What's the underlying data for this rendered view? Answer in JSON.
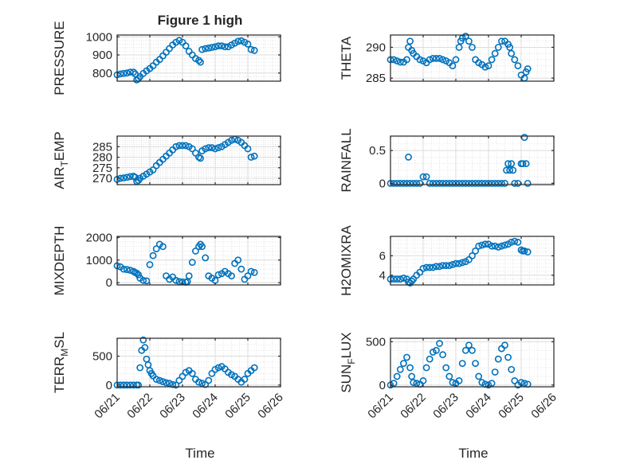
{
  "figure": {
    "title": "Figure 1 high"
  },
  "xticks": [
    "06/21",
    "06/22",
    "06/23",
    "06/24",
    "06/25",
    "06/26"
  ],
  "xlabel_left": "Time",
  "xlabel_right": "Time",
  "colors": {
    "marker": "#0072BD",
    "axis": "#262626",
    "grid": "#dcdcdc",
    "background": "#ffffff"
  },
  "chart_data": [
    {
      "type": "scatter",
      "ylabel": "PRESSURE",
      "ylim": [
        755,
        1010
      ],
      "yticks": [
        "800",
        "900",
        "1000"
      ],
      "ytick_values": [
        800,
        900,
        1000
      ],
      "xlim": [
        0,
        5
      ],
      "x": [
        0,
        0.1,
        0.2,
        0.3,
        0.4,
        0.5,
        0.55,
        0.6,
        0.65,
        0.7,
        0.8,
        0.9,
        1.0,
        1.1,
        1.2,
        1.3,
        1.4,
        1.5,
        1.6,
        1.7,
        1.8,
        1.9,
        2.0,
        2.1,
        2.2,
        2.3,
        2.4,
        2.5,
        2.55,
        2.6,
        2.7,
        2.8,
        2.9,
        3.0,
        3.1,
        3.2,
        3.3,
        3.4,
        3.5,
        3.6,
        3.7,
        3.8,
        3.9,
        4.0,
        4.1,
        4.2
      ],
      "y": [
        790,
        795,
        798,
        800,
        805,
        805,
        795,
        762,
        770,
        780,
        798,
        812,
        825,
        840,
        860,
        875,
        895,
        915,
        935,
        955,
        970,
        980,
        970,
        950,
        920,
        900,
        880,
        870,
        860,
        930,
        935,
        938,
        942,
        945,
        950,
        950,
        945,
        945,
        955,
        965,
        975,
        978,
        970,
        960,
        930,
        925
      ]
    },
    {
      "type": "scatter",
      "ylabel": "THETA",
      "ylim": [
        284.5,
        292
      ],
      "yticks": [
        "285",
        "290"
      ],
      "ytick_values": [
        285,
        290
      ],
      "xlim": [
        0,
        5
      ],
      "x": [
        0,
        0.1,
        0.2,
        0.3,
        0.4,
        0.5,
        0.55,
        0.6,
        0.65,
        0.7,
        0.8,
        0.9,
        1.0,
        1.1,
        1.2,
        1.3,
        1.4,
        1.5,
        1.6,
        1.7,
        1.8,
        1.9,
        2.0,
        2.1,
        2.15,
        2.2,
        2.3,
        2.4,
        2.5,
        2.6,
        2.7,
        2.8,
        2.9,
        3.0,
        3.1,
        3.2,
        3.3,
        3.4,
        3.5,
        3.6,
        3.65,
        3.7,
        3.8,
        3.9,
        4.0,
        4.1,
        4.15,
        4.2
      ],
      "y": [
        288,
        288,
        287.8,
        287.6,
        287.6,
        288,
        290,
        291,
        289.5,
        289,
        288.5,
        288,
        287.8,
        287.5,
        288,
        288.2,
        288.2,
        288.2,
        288,
        287.8,
        287.5,
        287,
        288,
        290,
        291,
        291.5,
        291.8,
        291,
        290,
        288,
        287.5,
        287.2,
        286.8,
        287,
        288,
        289,
        290,
        291,
        291,
        290.5,
        290,
        289,
        288,
        287,
        285.5,
        285,
        286,
        286.5
      ]
    },
    {
      "type": "scatter",
      "ylabel": "AIR_TEMP",
      "ylabel_main": "AIR",
      "ylabel_sub": "T",
      "ylabel_tail": "EMP",
      "ylim": [
        267,
        290
      ],
      "yticks": [
        "270",
        "275",
        "280",
        "285"
      ],
      "ytick_values": [
        270,
        275,
        280,
        285
      ],
      "xlim": [
        0,
        5
      ],
      "x": [
        0,
        0.1,
        0.2,
        0.3,
        0.4,
        0.5,
        0.55,
        0.6,
        0.65,
        0.7,
        0.8,
        0.9,
        1.0,
        1.1,
        1.2,
        1.3,
        1.4,
        1.5,
        1.6,
        1.7,
        1.8,
        1.9,
        2.0,
        2.1,
        2.2,
        2.3,
        2.4,
        2.5,
        2.55,
        2.6,
        2.7,
        2.8,
        2.9,
        3.0,
        3.1,
        3.2,
        3.3,
        3.4,
        3.5,
        3.6,
        3.7,
        3.8,
        3.9,
        4.0,
        4.1,
        4.2
      ],
      "y": [
        269.5,
        270,
        270.2,
        270.5,
        270.8,
        271,
        270.5,
        268.5,
        269,
        270,
        271,
        272,
        273,
        274,
        276,
        277.5,
        279,
        280.5,
        282,
        283.5,
        285,
        285.5,
        285.5,
        285.5,
        285,
        284,
        282,
        280,
        279.5,
        283,
        284,
        284.5,
        284.5,
        284,
        284.5,
        285,
        286,
        287,
        288,
        288.5,
        288,
        287,
        285.5,
        284,
        280,
        280.5
      ]
    },
    {
      "type": "scatter",
      "ylabel": "RAINFALL",
      "ylim": [
        -0.02,
        0.72
      ],
      "yticks": [
        "0",
        "0.5"
      ],
      "ytick_values": [
        0,
        0.5
      ],
      "xlim": [
        0,
        5
      ],
      "x": [
        0,
        0.1,
        0.2,
        0.3,
        0.4,
        0.5,
        0.55,
        0.6,
        0.7,
        0.8,
        0.9,
        1.0,
        1.1,
        1.2,
        1.3,
        1.4,
        1.5,
        1.6,
        1.7,
        1.8,
        1.9,
        2.0,
        2.1,
        2.2,
        2.3,
        2.4,
        2.5,
        2.6,
        2.7,
        2.8,
        2.9,
        3.0,
        3.1,
        3.2,
        3.3,
        3.4,
        3.5,
        3.55,
        3.6,
        3.65,
        3.7,
        3.75,
        3.8,
        3.9,
        4.0,
        4.05,
        4.1,
        4.15,
        4.2
      ],
      "y": [
        0,
        0,
        0,
        0,
        0,
        0,
        0.4,
        0,
        0,
        0,
        0,
        0.1,
        0.1,
        0,
        0,
        0,
        0,
        0,
        0,
        0,
        0,
        0,
        0,
        0,
        0,
        0,
        0,
        0,
        0,
        0,
        0,
        0,
        0,
        0,
        0,
        0,
        0,
        0.2,
        0.3,
        0.2,
        0.3,
        0.2,
        0,
        0,
        0.3,
        0.3,
        0.7,
        0.3,
        0
      ]
    },
    {
      "type": "scatter",
      "ylabel": "MIXDEPTH",
      "ylim": [
        -100,
        2050
      ],
      "yticks": [
        "0",
        "1000",
        "2000"
      ],
      "ytick_values": [
        0,
        1000,
        2000
      ],
      "xlim": [
        0,
        5
      ],
      "x": [
        0,
        0.1,
        0.2,
        0.3,
        0.4,
        0.5,
        0.55,
        0.6,
        0.65,
        0.7,
        0.8,
        0.9,
        1.0,
        1.1,
        1.2,
        1.3,
        1.4,
        1.5,
        1.6,
        1.7,
        1.8,
        1.9,
        2.0,
        2.1,
        2.15,
        2.2,
        2.3,
        2.4,
        2.5,
        2.55,
        2.6,
        2.7,
        2.8,
        2.9,
        3.0,
        3.1,
        3.2,
        3.3,
        3.4,
        3.5,
        3.6,
        3.7,
        3.8,
        3.9,
        4.0,
        4.1,
        4.2
      ],
      "y": [
        750,
        700,
        600,
        580,
        550,
        500,
        450,
        420,
        350,
        200,
        100,
        80,
        800,
        1200,
        1500,
        1700,
        1600,
        300,
        150,
        250,
        100,
        50,
        30,
        20,
        50,
        300,
        900,
        1400,
        1600,
        1700,
        1600,
        1100,
        300,
        200,
        100,
        350,
        400,
        500,
        400,
        300,
        850,
        1000,
        600,
        150,
        300,
        500,
        450
      ]
    },
    {
      "type": "scatter",
      "ylabel": "H2OMIXRA",
      "ylim": [
        3,
        8
      ],
      "yticks": [
        "4",
        "6"
      ],
      "ytick_values": [
        4,
        6
      ],
      "xlim": [
        0,
        5
      ],
      "x": [
        0,
        0.1,
        0.2,
        0.3,
        0.4,
        0.5,
        0.55,
        0.6,
        0.65,
        0.7,
        0.8,
        0.9,
        1.0,
        1.1,
        1.2,
        1.3,
        1.4,
        1.5,
        1.6,
        1.7,
        1.8,
        1.9,
        2.0,
        2.1,
        2.2,
        2.3,
        2.4,
        2.5,
        2.6,
        2.7,
        2.8,
        2.9,
        3.0,
        3.1,
        3.2,
        3.3,
        3.4,
        3.5,
        3.6,
        3.7,
        3.8,
        3.9,
        4.0,
        4.05,
        4.1,
        4.2
      ],
      "y": [
        3.6,
        3.6,
        3.6,
        3.6,
        3.7,
        3.6,
        3.3,
        3.2,
        3.4,
        3.6,
        4.0,
        4.3,
        4.7,
        4.8,
        4.8,
        4.8,
        4.9,
        4.9,
        5.0,
        5.0,
        5.0,
        5.1,
        5.2,
        5.2,
        5.3,
        5.4,
        5.6,
        6.0,
        6.5,
        7.0,
        7.1,
        7.2,
        7.2,
        7.0,
        7.0,
        6.9,
        7.0,
        7.1,
        7.2,
        7.4,
        7.5,
        7.4,
        6.6,
        6.5,
        6.5,
        6.4
      ]
    },
    {
      "type": "scatter",
      "ylabel": "TERR_MSL",
      "ylabel_main": "TERR",
      "ylabel_sub": "M",
      "ylabel_tail": "SL",
      "ylim": [
        -30,
        810
      ],
      "yticks": [
        "0",
        "500"
      ],
      "ytick_values": [
        0,
        500
      ],
      "xlim": [
        0,
        5
      ],
      "x": [
        0,
        0.1,
        0.2,
        0.3,
        0.4,
        0.5,
        0.6,
        0.65,
        0.7,
        0.75,
        0.8,
        0.85,
        0.9,
        0.95,
        1.0,
        1.05,
        1.1,
        1.2,
        1.3,
        1.4,
        1.5,
        1.6,
        1.7,
        1.8,
        1.9,
        2.0,
        2.1,
        2.2,
        2.3,
        2.4,
        2.5,
        2.6,
        2.7,
        2.8,
        2.9,
        3.0,
        3.1,
        3.2,
        3.3,
        3.4,
        3.5,
        3.6,
        3.7,
        3.8,
        3.9,
        4.0,
        4.1,
        4.2
      ],
      "y": [
        0,
        0,
        0,
        0,
        0,
        0,
        0,
        0,
        300,
        600,
        780,
        650,
        450,
        350,
        250,
        200,
        160,
        100,
        80,
        60,
        40,
        30,
        10,
        0,
        80,
        150,
        220,
        250,
        200,
        100,
        50,
        30,
        10,
        80,
        200,
        270,
        300,
        320,
        280,
        220,
        180,
        150,
        100,
        50,
        100,
        200,
        250,
        300
      ]
    },
    {
      "type": "scatter",
      "ylabel": "SUN_FLUX",
      "ylabel_main": "SUN",
      "ylabel_sub": "F",
      "ylabel_tail": "LUX",
      "ylim": [
        -20,
        540
      ],
      "yticks": [
        "0",
        "500"
      ],
      "ytick_values": [
        0,
        500
      ],
      "xlim": [
        0,
        5
      ],
      "x": [
        0,
        0.1,
        0.2,
        0.3,
        0.4,
        0.5,
        0.6,
        0.65,
        0.7,
        0.8,
        0.9,
        1.0,
        1.1,
        1.2,
        1.3,
        1.4,
        1.5,
        1.6,
        1.7,
        1.8,
        1.9,
        2.0,
        2.1,
        2.2,
        2.3,
        2.4,
        2.5,
        2.6,
        2.7,
        2.8,
        2.9,
        3.0,
        3.1,
        3.2,
        3.3,
        3.4,
        3.5,
        3.6,
        3.7,
        3.8,
        3.9,
        4.0,
        4.1,
        4.2
      ],
      "y": [
        0,
        20,
        100,
        180,
        250,
        320,
        200,
        100,
        30,
        20,
        10,
        50,
        200,
        300,
        380,
        400,
        480,
        350,
        200,
        100,
        30,
        20,
        50,
        250,
        400,
        460,
        400,
        250,
        100,
        30,
        10,
        0,
        20,
        150,
        300,
        420,
        460,
        320,
        180,
        50,
        0,
        30,
        20,
        10
      ]
    }
  ]
}
